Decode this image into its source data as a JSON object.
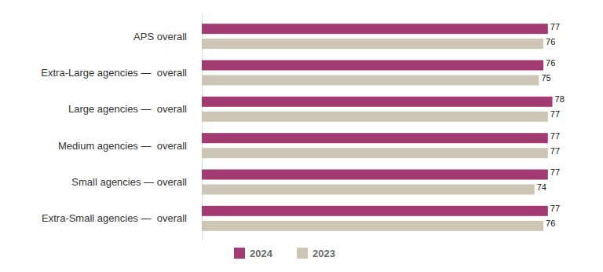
{
  "chart_data": {
    "type": "bar",
    "orientation": "horizontal",
    "categories": [
      "APS overall",
      "Extra-Large agencies —  overall",
      "Large agencies —  overall",
      "Medium agencies —  overall",
      "Small agencies — overall",
      "Extra-Small agencies —  overall"
    ],
    "series": [
      {
        "name": "2024",
        "color": "#a23b72",
        "values": [
          77,
          76,
          78,
          77,
          77,
          77
        ]
      },
      {
        "name": "2023",
        "color": "#cdc5b5",
        "values": [
          76,
          75,
          77,
          77,
          74,
          76
        ]
      }
    ],
    "xlim": [
      0,
      80
    ],
    "data_labels": true,
    "tick_labels": "y",
    "legend": "bottom",
    "grid": false
  }
}
